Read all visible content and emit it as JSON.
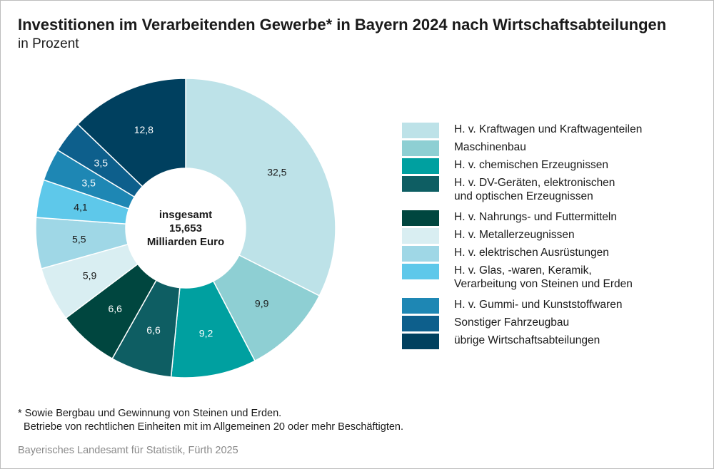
{
  "header": {
    "title": "Investitionen im Verarbeitenden Gewerbe* in Bayern 2024 nach Wirtschaftsabteilungen",
    "subtitle": "in Prozent"
  },
  "chart_data": {
    "type": "pie",
    "donut": true,
    "center_label": [
      "insgesamt",
      "15,653",
      "Milliarden Euro"
    ],
    "slices": [
      {
        "label": "H. v. Kraftwagen und Kraftwagenteilen",
        "value": 32.5,
        "display": "32,5",
        "color": "#bde2e8"
      },
      {
        "label": "Maschinenbau",
        "value": 9.9,
        "display": "9,9",
        "color": "#8ecfd3"
      },
      {
        "label": "H. v. chemischen Erzeugnissen",
        "value": 9.2,
        "display": "9,2",
        "color": "#00a0a0"
      },
      {
        "label": "H. v. DV-Geräten, elektronischen\nund optischen Erzeugnissen",
        "value": 6.6,
        "display": "6,6",
        "color": "#0e5e63"
      },
      {
        "label": "H. v. Nahrungs- und Futtermitteln",
        "value": 6.6,
        "display": "6,6",
        "color": "#00463f"
      },
      {
        "label": "H. v. Metallerzeugnissen",
        "value": 5.9,
        "display": "5,9",
        "color": "#d9eef2"
      },
      {
        "label": "H. v. elektrischen Ausrüstungen",
        "value": 5.5,
        "display": "5,5",
        "color": "#9fd7e6"
      },
      {
        "label": "H. v. Glas, -waren, Keramik,\nVerarbeitung von Steinen und Erden",
        "value": 4.1,
        "display": "4,1",
        "color": "#5ec8ea"
      },
      {
        "label": "H. v. Gummi- und Kunststoffwaren",
        "value": 3.5,
        "display": "3,5",
        "color": "#1e87b4"
      },
      {
        "label": "Sonstiger Fahrzeugbau",
        "value": 3.5,
        "display": "3,5",
        "color": "#0d5f8c"
      },
      {
        "label": "übrige Wirtschaftsabteilungen",
        "value": 12.8,
        "display": "12,8",
        "color": "#00405f"
      }
    ]
  },
  "footnote": "* Sowie Bergbau und Gewinnung von Steinen und Erden.\n  Betriebe von rechtlichen Einheiten mit im Allgemeinen 20 oder mehr Beschäftigten.",
  "source": "Bayerisches Landesamt für Statistik, Fürth 2025"
}
